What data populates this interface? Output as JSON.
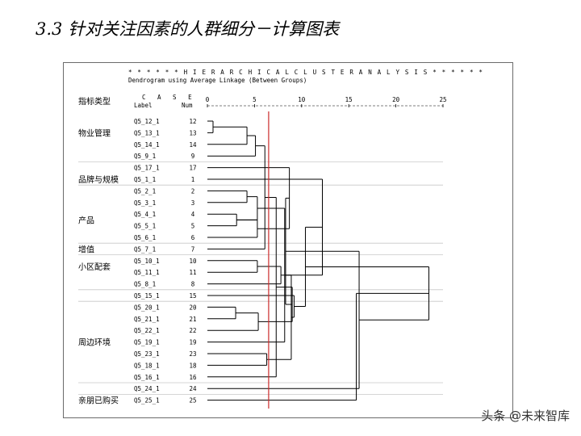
{
  "slide_title": "3.3  针对关注因素的人群细分－计算图表",
  "watermark": "头条 @未来智库",
  "chart_data": {
    "type": "dendrogram",
    "banner": "* * * * * * H I E R A R C H I C A L   C L U S T E R   A N A L Y S I S * * * * * *",
    "subtitle": "Dendrogram using Average Linkage (Between Groups)",
    "case_header": "C A S E",
    "label_header": "Label",
    "num_header": "Num",
    "xlim": [
      0,
      25
    ],
    "x_ticks": [
      "0",
      "5",
      "10",
      "15",
      "20",
      "25"
    ],
    "category_header": "指标类型",
    "cut_line_x": 6.5,
    "cut_line_color": "#cc2a2a",
    "leaves": [
      {
        "label": "Q5_12_1",
        "num": "12"
      },
      {
        "label": "Q5_13_1",
        "num": "13"
      },
      {
        "label": "Q5_14_1",
        "num": "14"
      },
      {
        "label": "Q5_9_1",
        "num": "9"
      },
      {
        "label": "Q5_17_1",
        "num": "17"
      },
      {
        "label": "Q5_1_1",
        "num": "1"
      },
      {
        "label": "Q5_2_1",
        "num": "2"
      },
      {
        "label": "Q5_3_1",
        "num": "3"
      },
      {
        "label": "Q5_4_1",
        "num": "4"
      },
      {
        "label": "Q5_5_1",
        "num": "5"
      },
      {
        "label": "Q5_6_1",
        "num": "6"
      },
      {
        "label": "Q5_7_1",
        "num": "7"
      },
      {
        "label": "Q5_10_1",
        "num": "10"
      },
      {
        "label": "Q5_11_1",
        "num": "11"
      },
      {
        "label": "Q5_8_1",
        "num": "8"
      },
      {
        "label": "Q5_15_1",
        "num": "15"
      },
      {
        "label": "Q5_20_1",
        "num": "20"
      },
      {
        "label": "Q5_21_1",
        "num": "21"
      },
      {
        "label": "Q5_22_1",
        "num": "22"
      },
      {
        "label": "Q5_19_1",
        "num": "19"
      },
      {
        "label": "Q5_23_1",
        "num": "23"
      },
      {
        "label": "Q5_18_1",
        "num": "18"
      },
      {
        "label": "Q5_16_1",
        "num": "16"
      },
      {
        "label": "Q5_24_1",
        "num": "24"
      },
      {
        "label": "Q5_25_1",
        "num": "25"
      }
    ],
    "categories": [
      {
        "name": "物业管理",
        "leaf": 1
      },
      {
        "name": "品牌与规模",
        "leaf": 5
      },
      {
        "name": "产品",
        "leaf": 8.5
      },
      {
        "name": "增值",
        "leaf": 11
      },
      {
        "name": "小区配套",
        "leaf": 12.5
      },
      {
        "name": "周边环境",
        "leaf": 19
      },
      {
        "name": "亲朋已购买",
        "leaf": 24
      }
    ],
    "separators_after_leaf": [
      3,
      5,
      10,
      11,
      14,
      15,
      22,
      23
    ],
    "merges": [
      {
        "a": 0,
        "b": 1,
        "h": 0.6
      },
      {
        "a": 25,
        "b": 2,
        "h": 4.2
      },
      {
        "a": 8,
        "b": 9,
        "h": 3.1
      },
      {
        "a": 6,
        "b": 7,
        "h": 4.2
      },
      {
        "a": 16,
        "b": 17,
        "h": 3.0
      },
      {
        "a": 26,
        "b": 3,
        "h": 5.1
      },
      {
        "a": 27,
        "b": 10,
        "h": 5.3
      },
      {
        "a": 12,
        "b": 13,
        "h": 5.3
      },
      {
        "a": 28,
        "b": 27,
        "h": 5.3
      },
      {
        "a": 29,
        "b": 18,
        "h": 5.4
      },
      {
        "a": 30,
        "b": 11,
        "h": 6.1
      },
      {
        "a": 20,
        "b": 21,
        "h": 6.3
      },
      {
        "a": 35,
        "b": 22,
        "h": 7.3
      },
      {
        "a": 32,
        "b": 14,
        "h": 7.8
      },
      {
        "a": 31,
        "b": 4,
        "h": 8.7
      },
      {
        "a": 33,
        "b": 19,
        "h": 8.2
      },
      {
        "a": 37,
        "b": 34,
        "h": 9.0
      },
      {
        "a": 38,
        "b": 36,
        "h": 8.9
      },
      {
        "a": 41,
        "b": 39,
        "h": 8.3
      },
      {
        "a": 40,
        "b": 5,
        "h": 12.2
      },
      {
        "a": 42,
        "b": 15,
        "h": 9.2
      },
      {
        "a": 44,
        "b": 45,
        "h": 10.4
      },
      {
        "a": 43,
        "b": 23,
        "h": 16.1
      },
      {
        "a": 46,
        "b": 47,
        "h": 23.5
      },
      {
        "a": 48,
        "b": 24,
        "h": 15.8
      }
    ]
  }
}
